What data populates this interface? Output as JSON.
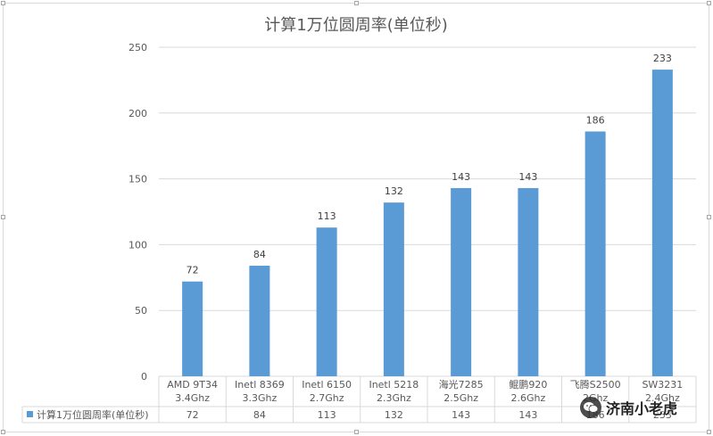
{
  "chart_data": {
    "type": "bar",
    "title": "计算1万位圆周率(单位秒)",
    "categories": [
      [
        "AMD 9T34",
        "3.4Ghz"
      ],
      [
        "Inetl 8369",
        "3.3Ghz"
      ],
      [
        "Inetl 6150",
        "2.7Ghz"
      ],
      [
        "Inetl 5218",
        "2.3Ghz"
      ],
      [
        "海光7285",
        "2.5Ghz"
      ],
      [
        "鲲鹏920",
        "2.6Ghz"
      ],
      [
        "飞腾S2500",
        "2Ghz"
      ],
      [
        "SW3231",
        "2.4Ghz"
      ]
    ],
    "series": [
      {
        "name": "计算1万位圆周率(单位秒)",
        "values": [
          72,
          84,
          113,
          132,
          143,
          143,
          186,
          233
        ],
        "color": "#5b9bd5"
      }
    ],
    "ylim": [
      0,
      250
    ],
    "yticks": [
      0,
      50,
      100,
      150,
      200,
      250
    ],
    "grid": true,
    "data_table": true
  },
  "watermark": {
    "text": "济南小老虎",
    "icon": "wechat-icon"
  },
  "colors": {
    "bar": "#5b9bd5",
    "grid": "#d9d9d9",
    "text": "#595959",
    "label": "#404040"
  }
}
